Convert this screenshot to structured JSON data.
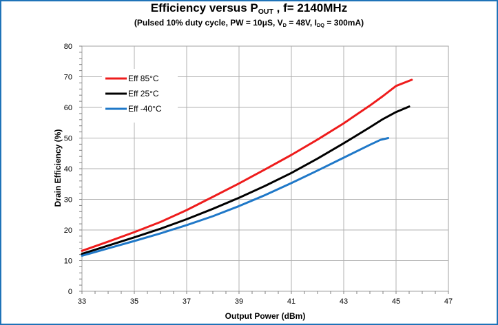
{
  "header": {
    "title_main": "Efficiency versus P",
    "title_sub": "OUT",
    "title_rest": " , f= 2140MHz",
    "subtitle_a": "(Pulsed 10% duty cycle, PW = 10μS, V",
    "subtitle_vd_sub": "D",
    "subtitle_b": " = 48V, I",
    "subtitle_idq_sub": "DQ",
    "subtitle_c": " = 300mA)"
  },
  "chart_data": {
    "type": "line",
    "xlabel": "Output Power (dBm)",
    "ylabel": "Drain Efficiency (%)",
    "xlim": [
      33,
      47
    ],
    "ylim": [
      0,
      80
    ],
    "x_ticks": [
      33,
      35,
      37,
      39,
      41,
      43,
      45,
      47
    ],
    "y_ticks": [
      0,
      10,
      20,
      30,
      40,
      50,
      60,
      70,
      80
    ],
    "grid": true,
    "legend_position": "top-left",
    "series": [
      {
        "name": "Eff 85°C",
        "color": "#ee1c1c",
        "points": [
          [
            33,
            13.2
          ],
          [
            34,
            16.2
          ],
          [
            35,
            19.3
          ],
          [
            36,
            22.6
          ],
          [
            37,
            26.5
          ],
          [
            38,
            30.8
          ],
          [
            39,
            35.2
          ],
          [
            40,
            39.8
          ],
          [
            41,
            44.5
          ],
          [
            42,
            49.5
          ],
          [
            43,
            54.8
          ],
          [
            44,
            60.6
          ],
          [
            44.5,
            63.7
          ],
          [
            45,
            67.0
          ],
          [
            45.6,
            69.0
          ]
        ]
      },
      {
        "name": "Eff 25°C",
        "color": "#000000",
        "points": [
          [
            33,
            12.2
          ],
          [
            34,
            14.9
          ],
          [
            35,
            17.6
          ],
          [
            36,
            20.4
          ],
          [
            37,
            23.5
          ],
          [
            38,
            26.9
          ],
          [
            39,
            30.5
          ],
          [
            40,
            34.4
          ],
          [
            41,
            38.6
          ],
          [
            42,
            43.3
          ],
          [
            43,
            48.3
          ],
          [
            44,
            53.5
          ],
          [
            44.5,
            56.2
          ],
          [
            45,
            58.5
          ],
          [
            45.5,
            60.3
          ]
        ]
      },
      {
        "name": "Eff -40°C",
        "color": "#1f78c8",
        "points": [
          [
            33,
            11.6
          ],
          [
            34,
            14.0
          ],
          [
            35,
            16.4
          ],
          [
            36,
            18.9
          ],
          [
            37,
            21.6
          ],
          [
            38,
            24.5
          ],
          [
            39,
            27.8
          ],
          [
            40,
            31.4
          ],
          [
            41,
            35.3
          ],
          [
            42,
            39.4
          ],
          [
            43,
            43.6
          ],
          [
            44,
            47.8
          ],
          [
            44.4,
            49.4
          ],
          [
            44.7,
            50.0
          ]
        ]
      }
    ]
  }
}
